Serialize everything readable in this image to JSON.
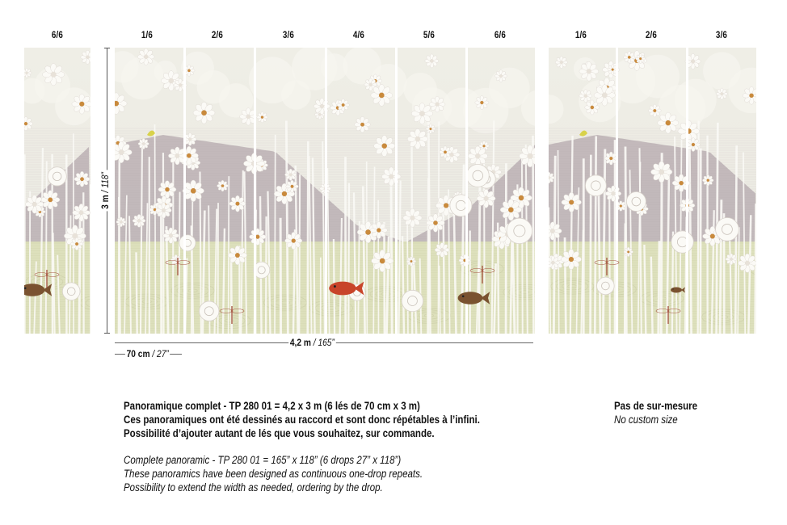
{
  "drop_labels": [
    "6/6",
    "1/6",
    "2/6",
    "3/6",
    "4/6",
    "5/6",
    "6/6",
    "1/6",
    "2/6",
    "3/6"
  ],
  "dimensions": {
    "height_metric": "3 m",
    "height_imperial": "118”",
    "width_metric": "4,2 m",
    "width_imperial": "165”",
    "drop_width_metric": "70 cm",
    "drop_width_imperial": "27”",
    "separator": " / "
  },
  "description": {
    "fr": [
      "Panoramique complet - TP 280 01 = 4,2 x 3 m (6 lés de 70 cm x 3 m)",
      "Ces panoramiques ont été dessinés au raccord et sont donc répétables à l’infini.",
      "Possibilité d’ajouter autant de lés que vous souhaitez, sur commande."
    ],
    "en": [
      "Complete panoramic - TP 280 01 = 165” x 118” (6 drops 27” x 118”)",
      "These panoramics have been designed as continuous one-drop repeats.",
      "Possibility to extend the width as needed, ordering by the drop."
    ]
  },
  "custom_size": {
    "fr": "Pas de sur-mesure",
    "en": "No custom size"
  },
  "colors": {
    "sky": "#efeee6",
    "mountain": "#b9aeb2",
    "water": "#d9dcb7",
    "flower": "#fbfaf6",
    "flower_center": "#c98a3c",
    "koi": "#c8452a",
    "koi_dark": "#7a5230",
    "bird": "#d8d24a"
  }
}
